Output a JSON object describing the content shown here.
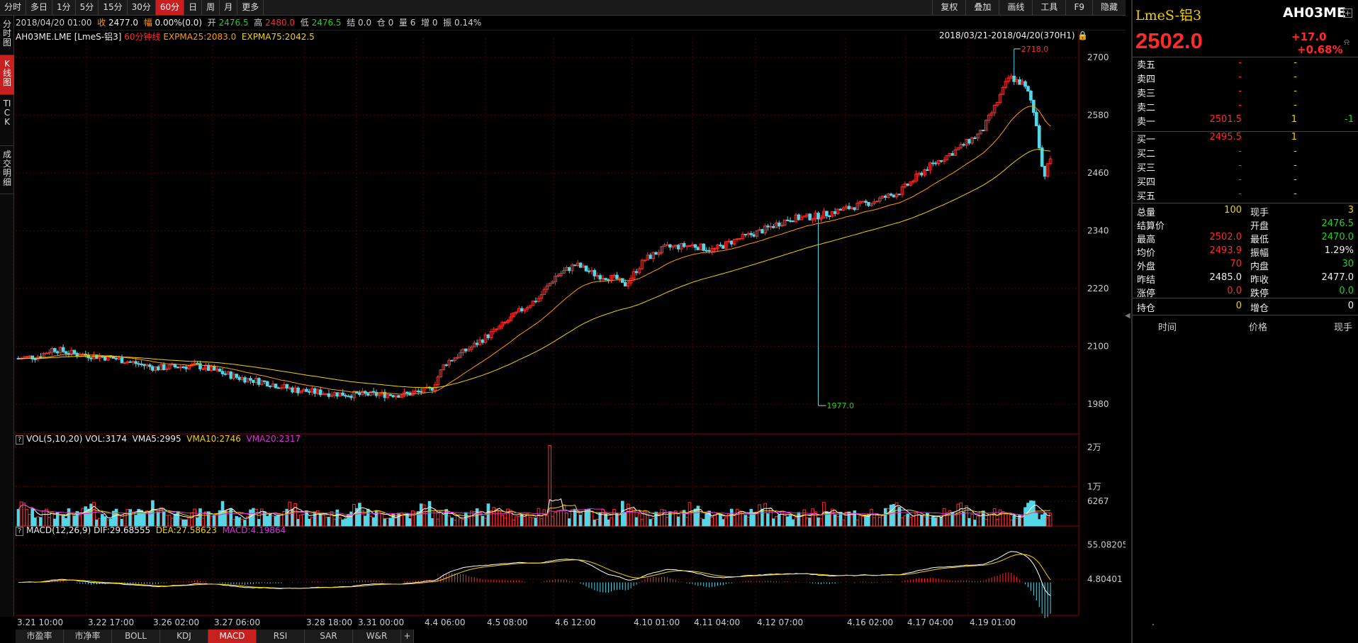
{
  "toolbar": {
    "tabs": [
      "分时",
      "多日",
      "1分",
      "5分",
      "15分",
      "30分",
      "60分",
      "日",
      "周",
      "月",
      "更多"
    ],
    "active_tab": "60分",
    "right_tabs": [
      "复权",
      "叠加",
      "画线",
      "工具",
      "F9",
      "隐藏"
    ]
  },
  "info_bar": {
    "date": "2018/04/20 01:00",
    "close_label": "收",
    "close": "2477.0",
    "change_label": "幅",
    "change": "0.00%(0.0)",
    "open_label": "开",
    "open": "2476.5",
    "high_label": "高",
    "high": "2480.0",
    "low_label": "低",
    "low": "2476.5",
    "settle_label": "结",
    "settle": "0.0",
    "oi_label": "仓",
    "oi": "0",
    "vol_label": "量",
    "vol": "6",
    "add_label": "增",
    "add": "0",
    "amp_label": "振",
    "amp": "0.14%"
  },
  "vertical_tabs": [
    "分时图",
    "K线图",
    "TICK",
    "成交明细"
  ],
  "main_chart": {
    "symbol": "AH03ME.LME [LmeS-铝3]",
    "period": "60分钟线",
    "expma25": "EXPMA25:2083.0",
    "expma75": "EXPMA75:2042.5",
    "range": "2018/03/21-2018/04/20(370H1)",
    "y_ticks": [
      "2700",
      "2580",
      "2460",
      "2340",
      "2220",
      "2100",
      "1980"
    ],
    "max_label": "2718.0",
    "min_label": "1977.0"
  },
  "vol_chart": {
    "title": "VOL(5,10,20)",
    "vol": "VOL:3174",
    "vma5": "VMA5:2995",
    "vma10": "VMA10:2746",
    "vma20": "VMA20:2317",
    "y_ticks": [
      "2万",
      "1万",
      "6267"
    ]
  },
  "macd_chart": {
    "title": "MACD(12,26,9)",
    "dif": "DIF:29.68555",
    "dea": "DEA:27.58623",
    "macd": "MACD:4.19864",
    "y_ticks": [
      "55.08205",
      "4.80401"
    ]
  },
  "x_labels": [
    "3.21 10:00",
    "3.22 17:00",
    "3.26 02:00",
    "3.27 06:00",
    "3.28 18:00",
    "3.31 00:00",
    "4.4 06:00",
    "4.5 08:00",
    "4.6 12:00",
    "4.10 01:00",
    "4.11 04:00",
    "4.12 07:00",
    "4.16 02:00",
    "4.17 04:00",
    "4.19 01:00"
  ],
  "bottom_tabs": [
    "市盈率",
    "市净率",
    "BOLL",
    "KDJ",
    "MACD",
    "RSI",
    "SAR",
    "W&R",
    "+"
  ],
  "bottom_active": "MACD",
  "quote": {
    "name": "LmeS-铝3",
    "code": "AH03ME",
    "price": "2502.0",
    "change": "+17.0",
    "change_pct": "+0.68%",
    "asks": [
      {
        "label": "卖五",
        "price": "-",
        "vol": "-",
        "delta": ""
      },
      {
        "label": "卖四",
        "price": "-",
        "vol": "-",
        "delta": ""
      },
      {
        "label": "卖三",
        "price": "-",
        "vol": "-",
        "delta": ""
      },
      {
        "label": "卖二",
        "price": "-",
        "vol": "-",
        "delta": ""
      },
      {
        "label": "卖一",
        "price": "2501.5",
        "vol": "1",
        "delta": "-1"
      }
    ],
    "bids": [
      {
        "label": "买一",
        "price": "2495.5",
        "vol": "1"
      },
      {
        "label": "买二",
        "price": "-",
        "vol": "-"
      },
      {
        "label": "买三",
        "price": "-",
        "vol": "-"
      },
      {
        "label": "买四",
        "price": "-",
        "vol": "-"
      },
      {
        "label": "买五",
        "price": "-",
        "vol": "-"
      }
    ],
    "stats": [
      {
        "l1": "总量",
        "v1": "100",
        "l2": "现手",
        "v2": "3"
      },
      {
        "l1": "结算价",
        "v1": "",
        "l2": "开盘",
        "v2": "2476.5"
      },
      {
        "l1": "最高",
        "v1": "2502.0",
        "l2": "最低",
        "v2": "2470.0"
      },
      {
        "l1": "均价",
        "v1": "2493.9",
        "l2": "振幅",
        "v2": "1.29%"
      },
      {
        "l1": "外盘",
        "v1": "70",
        "l2": "内盘",
        "v2": "30"
      },
      {
        "l1": "昨结",
        "v1": "2485.0",
        "l2": "昨收",
        "v2": "2477.0"
      },
      {
        "l1": "涨停",
        "v1": "0.0",
        "l2": "跌停",
        "v2": "0.0"
      }
    ],
    "position": {
      "l1": "持仓",
      "v1": "0",
      "l2": "增仓",
      "v2": "0"
    },
    "tick_headers": [
      "时间",
      "价格",
      "现手"
    ]
  },
  "colors": {
    "up": "#ff2b2b",
    "down": "#54d6e6",
    "ema25": "#ff9a00",
    "ema75": "#f3d100",
    "grid": "#5a0000"
  }
}
